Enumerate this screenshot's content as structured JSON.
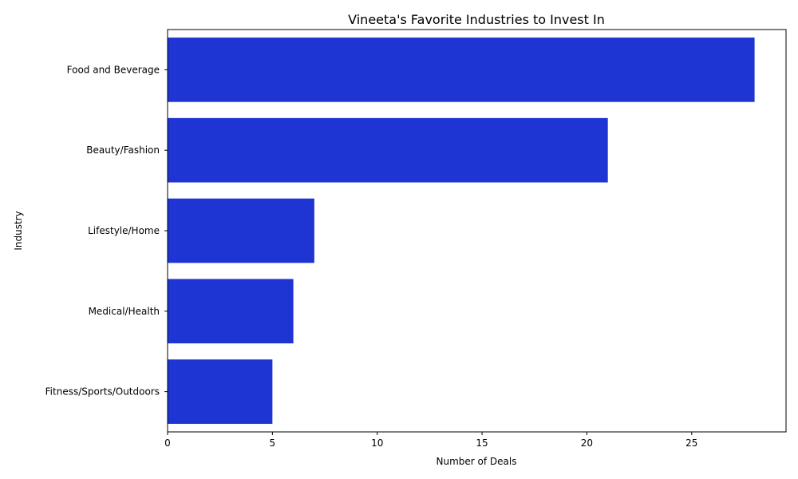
{
  "chart_data": {
    "type": "bar",
    "orientation": "horizontal",
    "title": "Vineeta's Favorite Industries to Invest In",
    "xlabel": "Number of Deals",
    "ylabel": "Industry",
    "categories": [
      "Food and Beverage",
      "Beauty/Fashion",
      "Lifestyle/Home",
      "Medical/Health",
      "Fitness/Sports/Outdoors"
    ],
    "values": [
      28,
      21,
      7,
      6,
      5
    ],
    "xlim": [
      0,
      29.5
    ],
    "xticks": [
      0,
      5,
      10,
      15,
      20,
      25
    ],
    "grid": false,
    "legend": "none",
    "bar_color": "#1e35d3"
  }
}
